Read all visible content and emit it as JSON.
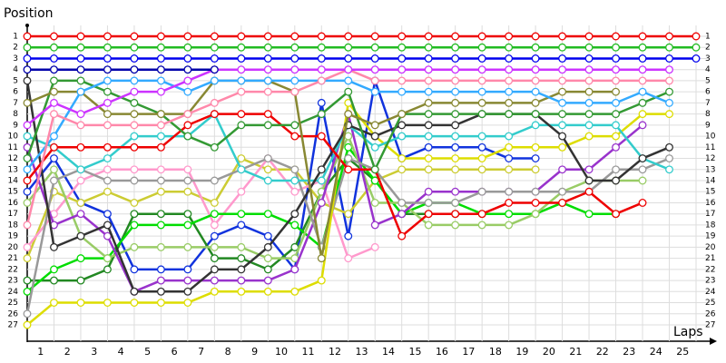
{
  "chart_data": {
    "type": "line",
    "y_label": "Position",
    "x_label": "Laps",
    "x": [
      0,
      1,
      2,
      3,
      4,
      5,
      6,
      7,
      8,
      9,
      10,
      11,
      12,
      13,
      14,
      15,
      16,
      17,
      18,
      19,
      20,
      21,
      22,
      23,
      24,
      25
    ],
    "xlim": [
      0,
      25
    ],
    "xticks": [
      1,
      2,
      3,
      4,
      5,
      6,
      7,
      8,
      9,
      10,
      11,
      12,
      13,
      14,
      15,
      16,
      17,
      18,
      19,
      20,
      21,
      22,
      23,
      24,
      25
    ],
    "ylim": [
      1,
      27
    ],
    "yticks": [
      1,
      2,
      3,
      4,
      5,
      6,
      7,
      8,
      9,
      10,
      11,
      12,
      13,
      14,
      15,
      16,
      17,
      18,
      19,
      20,
      21,
      22,
      23,
      24,
      25,
      26,
      27
    ],
    "y_inverted": true,
    "grid": true,
    "series": [
      {
        "color": "#1133dd",
        "values": [
          15,
          12,
          16,
          17,
          22,
          22,
          22,
          19,
          18,
          19,
          22,
          7,
          19,
          5,
          12,
          11,
          11,
          11,
          12,
          12,
          null,
          null,
          null,
          null,
          null,
          null
        ]
      },
      {
        "color": "#cccc33",
        "values": [
          21,
          15,
          16,
          15,
          16,
          15,
          15,
          16,
          12,
          13,
          13,
          16,
          17,
          14,
          13,
          13,
          13,
          13,
          13,
          13,
          null,
          null,
          null,
          null,
          null,
          null
        ]
      },
      {
        "color": "#ff99cc",
        "values": [
          20,
          17,
          14,
          13,
          13,
          13,
          13,
          18,
          15,
          12,
          15,
          14,
          21,
          20,
          null,
          null,
          null,
          null,
          null,
          null,
          null,
          null,
          null,
          null,
          null,
          null
        ]
      },
      {
        "color": "#228822",
        "values": [
          23,
          23,
          23,
          22,
          17,
          17,
          17,
          21,
          21,
          22,
          20,
          15,
          12,
          14,
          17,
          17,
          17,
          null,
          null,
          null,
          null,
          null,
          null,
          null,
          null,
          null
        ]
      },
      {
        "color": "#00dd00",
        "values": [
          24,
          22,
          21,
          21,
          18,
          18,
          18,
          17,
          17,
          17,
          18,
          20,
          11,
          14,
          17,
          16,
          16,
          17,
          17,
          17,
          16,
          17,
          17,
          null,
          null,
          null
        ]
      },
      {
        "color": "#99cc66",
        "values": [
          16,
          13,
          19,
          21,
          20,
          20,
          20,
          20,
          20,
          21,
          21,
          15,
          10,
          16,
          16,
          18,
          18,
          18,
          18,
          17,
          15,
          14,
          14,
          14,
          null,
          null
        ]
      },
      {
        "color": "#9933cc",
        "values": [
          11,
          18,
          17,
          19,
          24,
          23,
          23,
          23,
          23,
          23,
          22,
          16,
          8,
          18,
          17,
          15,
          15,
          15,
          15,
          15,
          13,
          13,
          11,
          9,
          null,
          null
        ]
      },
      {
        "color": "#999999",
        "values": [
          26,
          14,
          13,
          14,
          14,
          14,
          14,
          14,
          13,
          12,
          13,
          20,
          12,
          13,
          16,
          16,
          16,
          15,
          15,
          15,
          15,
          15,
          13,
          13,
          12,
          null
        ]
      },
      {
        "color": "#dddd00",
        "values": [
          27,
          25,
          25,
          25,
          25,
          25,
          25,
          24,
          24,
          24,
          24,
          23,
          7,
          10,
          12,
          12,
          12,
          12,
          11,
          11,
          11,
          10,
          10,
          8,
          8,
          null
        ]
      },
      {
        "color": "#33cccc",
        "values": [
          10,
          11,
          13,
          12,
          10,
          10,
          10,
          8,
          13,
          14,
          14,
          14,
          9,
          11,
          10,
          10,
          10,
          10,
          10,
          9,
          9,
          9,
          9,
          12,
          13,
          null
        ]
      },
      {
        "color": "#333333",
        "values": [
          5,
          20,
          19,
          18,
          24,
          24,
          24,
          22,
          22,
          20,
          17,
          13,
          9,
          10,
          9,
          9,
          9,
          8,
          8,
          8,
          10,
          14,
          14,
          12,
          11,
          null
        ]
      },
      {
        "color": "#ee0000",
        "values": [
          14,
          11,
          11,
          11,
          11,
          11,
          9,
          8,
          8,
          8,
          10,
          10,
          13,
          13,
          19,
          17,
          17,
          17,
          16,
          16,
          16,
          15,
          17,
          16,
          null,
          null
        ]
      },
      {
        "color": "#339933",
        "values": [
          12,
          5,
          5,
          6,
          7,
          8,
          10,
          11,
          9,
          9,
          9,
          8,
          6,
          13,
          8,
          8,
          8,
          8,
          8,
          8,
          8,
          8,
          8,
          7,
          6,
          null
        ]
      },
      {
        "color": "#888833",
        "values": [
          7,
          6,
          6,
          8,
          8,
          8,
          8,
          5,
          5,
          5,
          6,
          21,
          8,
          9,
          8,
          7,
          7,
          7,
          7,
          7,
          6,
          6,
          6,
          null,
          null,
          null
        ]
      },
      {
        "color": "#33aaff",
        "values": [
          13,
          10,
          6,
          5,
          5,
          5,
          6,
          5,
          5,
          5,
          5,
          5,
          5,
          6,
          6,
          6,
          6,
          6,
          6,
          6,
          7,
          7,
          7,
          6,
          7,
          null
        ]
      },
      {
        "color": "#ff88aa",
        "values": [
          18,
          8,
          9,
          9,
          9,
          9,
          8,
          7,
          6,
          6,
          6,
          5,
          4,
          5,
          5,
          5,
          5,
          5,
          5,
          5,
          5,
          5,
          5,
          5,
          5,
          null
        ]
      },
      {
        "color": "#cc33ff",
        "values": [
          9,
          7,
          8,
          7,
          6,
          6,
          5,
          4,
          4,
          4,
          4,
          4,
          4,
          4,
          4,
          4,
          4,
          4,
          4,
          4,
          4,
          4,
          4,
          4,
          4,
          null
        ]
      },
      {
        "color": "#0000aa",
        "values": [
          4,
          4,
          4,
          4,
          4,
          4,
          4,
          4,
          null,
          null,
          null,
          null,
          null,
          null,
          null,
          null,
          null,
          null,
          null,
          null,
          null,
          null,
          null,
          null,
          null,
          null
        ]
      },
      {
        "color": "#0000ee",
        "values": [
          3,
          3,
          3,
          3,
          3,
          3,
          3,
          3,
          3,
          3,
          3,
          3,
          3,
          3,
          3,
          3,
          3,
          3,
          3,
          3,
          3,
          3,
          3,
          3,
          3,
          3
        ]
      },
      {
        "color": "#22bb22",
        "values": [
          2,
          2,
          2,
          2,
          2,
          2,
          2,
          2,
          2,
          2,
          2,
          2,
          2,
          2,
          2,
          2,
          2,
          2,
          2,
          2,
          2,
          2,
          2,
          2,
          2,
          2
        ]
      },
      {
        "color": "#ee0000",
        "values": [
          1,
          1,
          1,
          1,
          1,
          1,
          1,
          1,
          1,
          1,
          1,
          1,
          1,
          1,
          1,
          1,
          1,
          1,
          1,
          1,
          1,
          1,
          1,
          1,
          1,
          1
        ]
      }
    ]
  }
}
